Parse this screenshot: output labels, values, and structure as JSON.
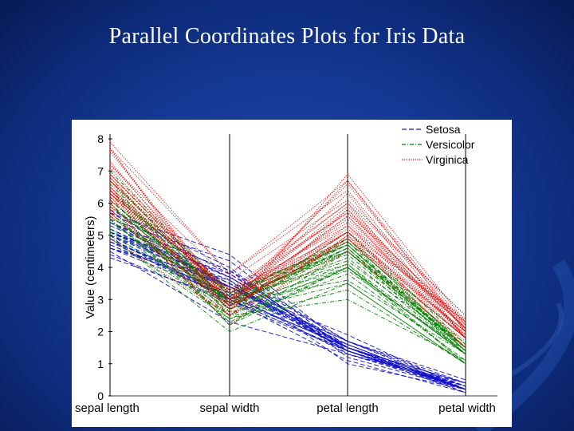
{
  "slide": {
    "title": "Parallel Coordinates Plots for Iris Data"
  },
  "chart_data": {
    "type": "line",
    "ylabel": "Value (centimeters)",
    "xlabel": "",
    "categories": [
      "sepal length",
      "sepal width",
      "petal length",
      "petal width"
    ],
    "ylim": [
      0,
      8
    ],
    "yticks": [
      0,
      1,
      2,
      3,
      4,
      5,
      6,
      7,
      8
    ],
    "legend_position": "top-right",
    "series": [
      {
        "name": "Setosa",
        "color": "#1010c8",
        "style": "dashed",
        "lines": [
          [
            5.1,
            3.5,
            1.4,
            0.2
          ],
          [
            4.9,
            3.0,
            1.4,
            0.2
          ],
          [
            4.7,
            3.2,
            1.3,
            0.2
          ],
          [
            4.6,
            3.1,
            1.5,
            0.2
          ],
          [
            5.0,
            3.6,
            1.4,
            0.2
          ],
          [
            5.4,
            3.9,
            1.7,
            0.4
          ],
          [
            4.6,
            3.4,
            1.4,
            0.3
          ],
          [
            5.0,
            3.4,
            1.5,
            0.2
          ],
          [
            4.4,
            2.9,
            1.4,
            0.2
          ],
          [
            4.9,
            3.1,
            1.5,
            0.1
          ],
          [
            5.4,
            3.7,
            1.5,
            0.2
          ],
          [
            4.8,
            3.4,
            1.6,
            0.2
          ],
          [
            4.8,
            3.0,
            1.4,
            0.1
          ],
          [
            4.3,
            3.0,
            1.1,
            0.1
          ],
          [
            5.8,
            4.0,
            1.2,
            0.2
          ],
          [
            5.7,
            4.4,
            1.5,
            0.4
          ],
          [
            5.4,
            3.9,
            1.3,
            0.4
          ],
          [
            5.1,
            3.5,
            1.4,
            0.3
          ],
          [
            5.7,
            3.8,
            1.7,
            0.3
          ],
          [
            5.1,
            3.8,
            1.5,
            0.3
          ],
          [
            5.4,
            3.4,
            1.7,
            0.2
          ],
          [
            5.1,
            3.7,
            1.5,
            0.4
          ],
          [
            4.6,
            3.6,
            1.0,
            0.2
          ],
          [
            5.1,
            3.3,
            1.7,
            0.5
          ],
          [
            4.8,
            3.4,
            1.9,
            0.2
          ],
          [
            5.0,
            3.0,
            1.6,
            0.2
          ],
          [
            5.2,
            3.5,
            1.5,
            0.2
          ],
          [
            5.2,
            3.4,
            1.4,
            0.2
          ],
          [
            4.7,
            3.2,
            1.6,
            0.2
          ],
          [
            5.5,
            4.2,
            1.4,
            0.2
          ],
          [
            4.5,
            2.3,
            1.3,
            0.3
          ],
          [
            5.3,
            3.7,
            1.5,
            0.2
          ]
        ]
      },
      {
        "name": "Versicolor",
        "color": "#008000",
        "style": "dashdot",
        "lines": [
          [
            7.0,
            3.2,
            4.7,
            1.4
          ],
          [
            6.4,
            3.2,
            4.5,
            1.5
          ],
          [
            6.9,
            3.1,
            4.9,
            1.5
          ],
          [
            5.5,
            2.3,
            4.0,
            1.3
          ],
          [
            6.5,
            2.8,
            4.6,
            1.5
          ],
          [
            5.7,
            2.8,
            4.5,
            1.3
          ],
          [
            6.3,
            3.3,
            4.7,
            1.6
          ],
          [
            4.9,
            2.4,
            3.3,
            1.0
          ],
          [
            6.6,
            2.9,
            4.6,
            1.3
          ],
          [
            5.2,
            2.7,
            3.9,
            1.4
          ],
          [
            5.0,
            2.0,
            3.5,
            1.0
          ],
          [
            5.9,
            3.0,
            4.2,
            1.5
          ],
          [
            6.0,
            2.2,
            4.0,
            1.0
          ],
          [
            6.1,
            2.9,
            4.7,
            1.4
          ],
          [
            5.6,
            2.9,
            3.6,
            1.3
          ],
          [
            6.7,
            3.1,
            4.4,
            1.4
          ],
          [
            5.8,
            2.7,
            4.1,
            1.0
          ],
          [
            6.2,
            2.2,
            4.5,
            1.5
          ],
          [
            5.9,
            3.2,
            4.8,
            1.8
          ],
          [
            6.1,
            2.8,
            4.0,
            1.3
          ],
          [
            6.3,
            2.5,
            4.9,
            1.5
          ],
          [
            6.4,
            2.9,
            4.3,
            1.3
          ],
          [
            6.8,
            2.8,
            4.8,
            1.4
          ],
          [
            5.7,
            2.6,
            3.5,
            1.0
          ],
          [
            5.5,
            2.4,
            3.8,
            1.1
          ],
          [
            6.0,
            2.7,
            5.1,
            1.6
          ],
          [
            5.4,
            3.0,
            4.5,
            1.5
          ],
          [
            6.7,
            3.1,
            4.7,
            1.5
          ],
          [
            5.6,
            3.0,
            4.1,
            1.3
          ],
          [
            5.5,
            2.5,
            4.0,
            1.3
          ],
          [
            6.1,
            3.0,
            4.6,
            1.4
          ],
          [
            5.1,
            2.5,
            3.0,
            1.1
          ]
        ]
      },
      {
        "name": "Virginica",
        "color": "#e00000",
        "style": "dotted",
        "lines": [
          [
            6.3,
            3.3,
            6.0,
            2.5
          ],
          [
            5.8,
            2.7,
            5.1,
            1.9
          ],
          [
            7.1,
            3.0,
            5.9,
            2.1
          ],
          [
            6.3,
            2.9,
            5.6,
            1.8
          ],
          [
            6.5,
            3.0,
            5.8,
            2.2
          ],
          [
            7.6,
            3.0,
            6.6,
            2.1
          ],
          [
            4.9,
            2.5,
            4.5,
            1.7
          ],
          [
            7.3,
            2.9,
            6.3,
            1.8
          ],
          [
            6.7,
            2.5,
            5.8,
            1.8
          ],
          [
            7.2,
            3.6,
            6.1,
            2.5
          ],
          [
            6.5,
            3.2,
            5.1,
            2.0
          ],
          [
            6.4,
            2.7,
            5.3,
            1.9
          ],
          [
            6.8,
            3.0,
            5.5,
            2.1
          ],
          [
            5.7,
            2.5,
            5.0,
            2.0
          ],
          [
            5.8,
            2.8,
            5.1,
            2.4
          ],
          [
            6.4,
            3.2,
            5.3,
            2.3
          ],
          [
            7.7,
            3.8,
            6.7,
            2.2
          ],
          [
            7.7,
            2.6,
            6.9,
            2.3
          ],
          [
            6.0,
            2.2,
            5.0,
            1.5
          ],
          [
            6.9,
            3.2,
            5.7,
            2.3
          ],
          [
            5.6,
            2.8,
            4.9,
            2.0
          ],
          [
            7.7,
            2.8,
            6.7,
            2.0
          ],
          [
            6.3,
            2.7,
            4.9,
            1.8
          ],
          [
            6.7,
            3.3,
            5.7,
            2.1
          ],
          [
            7.2,
            3.2,
            6.0,
            1.8
          ],
          [
            6.2,
            2.8,
            4.8,
            1.8
          ],
          [
            6.1,
            3.0,
            4.9,
            1.8
          ],
          [
            6.4,
            2.8,
            5.6,
            2.1
          ],
          [
            7.9,
            3.8,
            6.4,
            2.0
          ],
          [
            6.9,
            3.1,
            5.4,
            2.1
          ],
          [
            6.7,
            3.0,
            5.2,
            2.3
          ],
          [
            5.9,
            3.0,
            5.1,
            1.8
          ]
        ]
      }
    ]
  }
}
